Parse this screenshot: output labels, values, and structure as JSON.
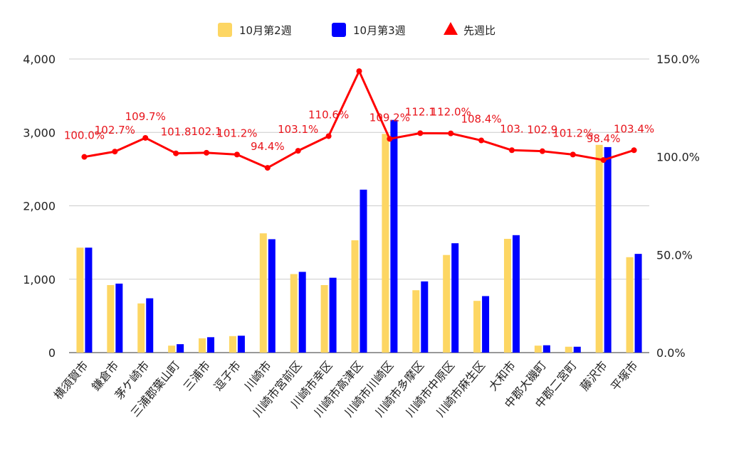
{
  "chart_data": {
    "type": "bar",
    "categories": [
      "横須賀市",
      "鎌倉市",
      "茅ケ崎市",
      "三浦郡葉山町",
      "三浦市",
      "逗子市",
      "川崎市",
      "川崎市宮前区",
      "川崎市幸区",
      "川崎市高津区",
      "川崎市川崎区",
      "川崎市多摩区",
      "川崎市中原区",
      "川崎市麻生区",
      "大和市",
      "中郡大磯町",
      "中郡二宮町",
      "藤沢市",
      "平塚市"
    ],
    "series": [
      {
        "name": "10月第2週",
        "kind": "bar",
        "axis": "left",
        "color": "#fdd663",
        "values": [
          1430,
          920,
          670,
          95,
          195,
          225,
          1625,
          1070,
          920,
          1530,
          2980,
          850,
          1330,
          705,
          1550,
          95,
          80,
          2830,
          1300
        ]
      },
      {
        "name": "10月第3週",
        "kind": "bar",
        "axis": "left",
        "color": "#0000ff",
        "values": [
          1430,
          940,
          740,
          115,
          210,
          230,
          1545,
          1100,
          1020,
          2220,
          3170,
          970,
          1490,
          770,
          1600,
          100,
          80,
          2800,
          1345
        ]
      },
      {
        "name": "先週比",
        "kind": "line",
        "axis": "right",
        "color": "#ff0000",
        "values": [
          100.0,
          102.7,
          109.7,
          101.8,
          102.1,
          101.2,
          94.4,
          103.1,
          110.6,
          143.8,
          109.2,
          112.1,
          112.0,
          108.4,
          103.4,
          102.9,
          101.2,
          98.4,
          103.4
        ],
        "labels": [
          "100.0%",
          "102.7%",
          "109.7%",
          "101.8",
          "102.1",
          "101.2%",
          "94.4%",
          "103.1%",
          "110.6%",
          "",
          "109.2%",
          "112.1",
          "112.0%",
          "108.4%",
          "103.",
          "102.9",
          "101.2%",
          "98.4%",
          "103.4%"
        ]
      }
    ],
    "yleft": {
      "min": 0,
      "max": 4000,
      "ticks": [
        "0",
        "1,000",
        "2,000",
        "3,000",
        "4,000"
      ]
    },
    "yright": {
      "min": 0,
      "max": 150,
      "ticks": [
        "0.0%",
        "50.0%",
        "100.0%",
        "150.0%"
      ]
    },
    "legend_position": "top-center",
    "grid": true
  },
  "colors": {
    "bar1": "#fdd663",
    "bar2": "#0000ff",
    "line": "#ff0000",
    "grid": "#cccccc"
  }
}
